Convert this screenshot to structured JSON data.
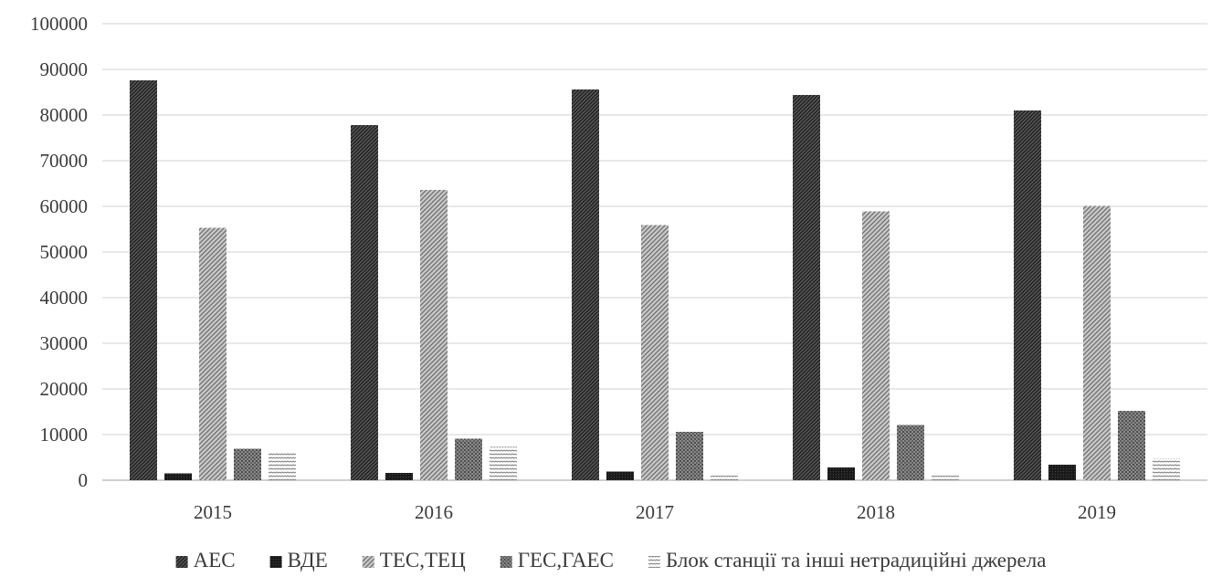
{
  "chart_data": {
    "type": "bar",
    "categories": [
      "2015",
      "2016",
      "2017",
      "2018",
      "2019"
    ],
    "ylim": [
      0,
      100000
    ],
    "yticks": [
      0,
      10000,
      20000,
      30000,
      40000,
      50000,
      60000,
      70000,
      80000,
      90000,
      100000
    ],
    "ytick_labels": [
      "0",
      "10000",
      "20000",
      "30000",
      "40000",
      "50000",
      "60000",
      "70000",
      "80000",
      "90000",
      "100000"
    ],
    "grid": true,
    "legend_position": "bottom",
    "series": [
      {
        "name": "АЕС",
        "pattern": "hatch-dense-dark",
        "values": [
          87600,
          77800,
          85600,
          84400,
          81000
        ]
      },
      {
        "name": "ВДЕ",
        "pattern": "solid-dark",
        "values": [
          1500,
          1600,
          1900,
          2800,
          3400
        ]
      },
      {
        "name": "ТЕС,ТЕЦ",
        "pattern": "hatch-light",
        "values": [
          55300,
          63600,
          55900,
          58900,
          60100
        ]
      },
      {
        "name": "ГЕС,ГАЕС",
        "pattern": "dots-medium",
        "values": [
          6900,
          9100,
          10600,
          12100,
          15200
        ]
      },
      {
        "name": "Блок станції та інші нетрадиційні джерела",
        "pattern": "horizontal-stripes",
        "values": [
          6100,
          7300,
          1000,
          1000,
          4800
        ]
      }
    ]
  }
}
